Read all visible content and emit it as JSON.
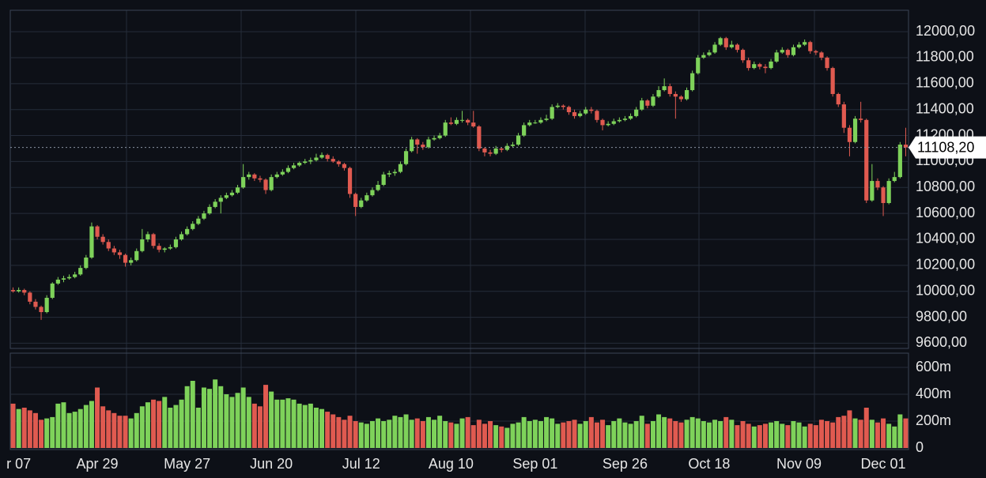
{
  "chart_data": {
    "type": "candlestick",
    "categories": [
      null,
      "r 07",
      null,
      null,
      null,
      null,
      null,
      null,
      null,
      null,
      null,
      null,
      null,
      null,
      null,
      "Apr 29",
      null,
      null,
      null,
      null,
      null,
      null,
      null,
      null,
      null,
      null,
      null,
      null,
      null,
      null,
      null,
      "May 27",
      null,
      null,
      null,
      null,
      null,
      null,
      null,
      null,
      null,
      null,
      null,
      null,
      null,
      null,
      "Jun 20",
      null,
      null,
      null,
      null,
      null,
      null,
      null,
      null,
      null,
      null,
      null,
      null,
      null,
      null,
      null,
      "Jul 12",
      null,
      null,
      null,
      null,
      null,
      null,
      null,
      null,
      null,
      null,
      null,
      null,
      null,
      null,
      null,
      "Aug 10",
      null,
      null,
      null,
      null,
      null,
      null,
      null,
      null,
      null,
      null,
      null,
      null,
      null,
      null,
      "Sep 01",
      null,
      null,
      null,
      null,
      null,
      null,
      null,
      null,
      null,
      null,
      null,
      null,
      null,
      null,
      null,
      "Sep 26",
      null,
      null,
      null,
      null,
      null,
      null,
      null,
      null,
      null,
      null,
      null,
      null,
      null,
      null,
      "Oct 18",
      null,
      null,
      null,
      null,
      null,
      null,
      null,
      null,
      null,
      null,
      null,
      null,
      null,
      null,
      null,
      "Nov 09",
      null,
      null,
      null,
      null,
      null,
      null,
      null,
      null,
      null,
      null,
      null,
      null,
      null,
      null,
      "Dec 01",
      null,
      null,
      null,
      null
    ],
    "ohlc": [
      [
        10010,
        10030,
        9990,
        10000
      ],
      [
        10000,
        10030,
        9990,
        10010
      ],
      [
        10010,
        10020,
        9970,
        9990
      ],
      [
        9990,
        10000,
        9900,
        9920
      ],
      [
        9920,
        9940,
        9860,
        9880
      ],
      [
        9880,
        9890,
        9780,
        9840
      ],
      [
        9840,
        9970,
        9830,
        9950
      ],
      [
        9950,
        10070,
        9940,
        10060
      ],
      [
        10060,
        10110,
        10050,
        10090
      ],
      [
        10090,
        10120,
        10070,
        10100
      ],
      [
        10100,
        10130,
        10090,
        10110
      ],
      [
        10110,
        10150,
        10100,
        10130
      ],
      [
        10130,
        10200,
        10120,
        10180
      ],
      [
        10180,
        10280,
        10170,
        10260
      ],
      [
        10260,
        10530,
        10250,
        10500
      ],
      [
        10500,
        10510,
        10400,
        10420
      ],
      [
        10420,
        10440,
        10360,
        10380
      ],
      [
        10380,
        10400,
        10310,
        10330
      ],
      [
        10330,
        10350,
        10280,
        10300
      ],
      [
        10300,
        10320,
        10250,
        10280
      ],
      [
        10280,
        10290,
        10190,
        10220
      ],
      [
        10220,
        10260,
        10200,
        10240
      ],
      [
        10240,
        10330,
        10230,
        10310
      ],
      [
        10310,
        10480,
        10300,
        10400
      ],
      [
        10400,
        10460,
        10380,
        10440
      ],
      [
        10440,
        10450,
        10330,
        10350
      ],
      [
        10350,
        10370,
        10300,
        10320
      ],
      [
        10320,
        10340,
        10300,
        10330
      ],
      [
        10330,
        10360,
        10320,
        10340
      ],
      [
        10340,
        10420,
        10330,
        10400
      ],
      [
        10400,
        10460,
        10390,
        10440
      ],
      [
        10440,
        10500,
        10430,
        10480
      ],
      [
        10480,
        10540,
        10470,
        10520
      ],
      [
        10520,
        10580,
        10510,
        10560
      ],
      [
        10560,
        10620,
        10550,
        10600
      ],
      [
        10600,
        10670,
        10590,
        10650
      ],
      [
        10650,
        10710,
        10640,
        10690
      ],
      [
        10690,
        10740,
        10600,
        10720
      ],
      [
        10720,
        10760,
        10710,
        10740
      ],
      [
        10740,
        10780,
        10730,
        10760
      ],
      [
        10760,
        10820,
        10750,
        10800
      ],
      [
        10800,
        10980,
        10790,
        10880
      ],
      [
        10880,
        10920,
        10860,
        10900
      ],
      [
        10900,
        10910,
        10850,
        10870
      ],
      [
        10870,
        10890,
        10840,
        10860
      ],
      [
        10860,
        10870,
        10750,
        10780
      ],
      [
        10780,
        10900,
        10770,
        10880
      ],
      [
        10880,
        10920,
        10870,
        10900
      ],
      [
        10900,
        10940,
        10890,
        10920
      ],
      [
        10920,
        10970,
        10910,
        10950
      ],
      [
        10950,
        10990,
        10940,
        10970
      ],
      [
        10970,
        11000,
        10960,
        10990
      ],
      [
        10990,
        11020,
        10980,
        11000
      ],
      [
        11000,
        11030,
        10980,
        11010
      ],
      [
        11010,
        11060,
        11000,
        11030
      ],
      [
        11030,
        11070,
        11020,
        11050
      ],
      [
        11050,
        11060,
        11000,
        11020
      ],
      [
        11020,
        11040,
        10990,
        11000
      ],
      [
        11000,
        11010,
        10960,
        10980
      ],
      [
        10980,
        10990,
        10930,
        10950
      ],
      [
        10950,
        10960,
        10720,
        10750
      ],
      [
        10750,
        10760,
        10580,
        10650
      ],
      [
        10650,
        10720,
        10640,
        10700
      ],
      [
        10700,
        10760,
        10690,
        10740
      ],
      [
        10740,
        10800,
        10730,
        10780
      ],
      [
        10780,
        10850,
        10770,
        10820
      ],
      [
        10820,
        10920,
        10810,
        10900
      ],
      [
        10900,
        10930,
        10880,
        10910
      ],
      [
        10910,
        10940,
        10890,
        10920
      ],
      [
        10920,
        11000,
        10910,
        10980
      ],
      [
        10980,
        11100,
        10970,
        11080
      ],
      [
        11080,
        11190,
        11070,
        11170
      ],
      [
        11170,
        11180,
        11060,
        11130
      ],
      [
        11130,
        11150,
        11090,
        11110
      ],
      [
        11110,
        11190,
        11100,
        11170
      ],
      [
        11170,
        11200,
        11160,
        11180
      ],
      [
        11180,
        11220,
        11170,
        11200
      ],
      [
        11200,
        11320,
        11190,
        11300
      ],
      [
        11300,
        11340,
        11280,
        11290
      ],
      [
        11290,
        11340,
        11280,
        11320
      ],
      [
        11320,
        11390,
        11300,
        11320
      ],
      [
        11320,
        11330,
        11280,
        11300
      ],
      [
        11300,
        11390,
        11260,
        11270
      ],
      [
        11270,
        11280,
        11080,
        11100
      ],
      [
        11100,
        11110,
        11040,
        11070
      ],
      [
        11070,
        11090,
        11040,
        11060
      ],
      [
        11060,
        11120,
        11050,
        11100
      ],
      [
        11100,
        11110,
        11070,
        11090
      ],
      [
        11090,
        11140,
        11080,
        11120
      ],
      [
        11120,
        11150,
        11110,
        11130
      ],
      [
        11130,
        11220,
        11120,
        11200
      ],
      [
        11200,
        11300,
        11190,
        11280
      ],
      [
        11280,
        11320,
        11270,
        11300
      ],
      [
        11300,
        11320,
        11290,
        11300
      ],
      [
        11300,
        11340,
        11290,
        11320
      ],
      [
        11320,
        11360,
        11310,
        11330
      ],
      [
        11330,
        11440,
        11320,
        11420
      ],
      [
        11420,
        11450,
        11410,
        11430
      ],
      [
        11430,
        11440,
        11400,
        11420
      ],
      [
        11420,
        11430,
        11360,
        11380
      ],
      [
        11380,
        11400,
        11330,
        11350
      ],
      [
        11350,
        11390,
        11340,
        11370
      ],
      [
        11370,
        11420,
        11360,
        11400
      ],
      [
        11400,
        11420,
        11370,
        11390
      ],
      [
        11390,
        11400,
        11300,
        11320
      ],
      [
        11320,
        11330,
        11240,
        11280
      ],
      [
        11280,
        11310,
        11270,
        11290
      ],
      [
        11290,
        11330,
        11280,
        11310
      ],
      [
        11310,
        11340,
        11300,
        11320
      ],
      [
        11320,
        11350,
        11310,
        11330
      ],
      [
        11330,
        11370,
        11320,
        11350
      ],
      [
        11350,
        11420,
        11340,
        11400
      ],
      [
        11400,
        11490,
        11390,
        11470
      ],
      [
        11470,
        11480,
        11410,
        11430
      ],
      [
        11430,
        11520,
        11420,
        11500
      ],
      [
        11500,
        11580,
        11490,
        11550
      ],
      [
        11550,
        11640,
        11540,
        11580
      ],
      [
        11580,
        11600,
        11500,
        11520
      ],
      [
        11520,
        11540,
        11330,
        11500
      ],
      [
        11500,
        11510,
        11460,
        11480
      ],
      [
        11480,
        11570,
        11470,
        11550
      ],
      [
        11550,
        11700,
        11540,
        11680
      ],
      [
        11680,
        11820,
        11670,
        11800
      ],
      [
        11800,
        11840,
        11790,
        11820
      ],
      [
        11820,
        11860,
        11810,
        11840
      ],
      [
        11840,
        11920,
        11830,
        11900
      ],
      [
        11900,
        11960,
        11890,
        11950
      ],
      [
        11950,
        11960,
        11860,
        11880
      ],
      [
        11880,
        11930,
        11870,
        11900
      ],
      [
        11900,
        11910,
        11840,
        11860
      ],
      [
        11860,
        11870,
        11760,
        11780
      ],
      [
        11780,
        11800,
        11700,
        11720
      ],
      [
        11720,
        11770,
        11710,
        11750
      ],
      [
        11750,
        11760,
        11710,
        11730
      ],
      [
        11730,
        11750,
        11680,
        11720
      ],
      [
        11720,
        11790,
        11710,
        11770
      ],
      [
        11770,
        11860,
        11760,
        11840
      ],
      [
        11840,
        11880,
        11830,
        11860
      ],
      [
        11860,
        11870,
        11800,
        11820
      ],
      [
        11820,
        11900,
        11810,
        11880
      ],
      [
        11880,
        11920,
        11870,
        11900
      ],
      [
        11900,
        11940,
        11890,
        11920
      ],
      [
        11920,
        11930,
        11830,
        11850
      ],
      [
        11850,
        11860,
        11820,
        11840
      ],
      [
        11840,
        11850,
        11780,
        11800
      ],
      [
        11800,
        11810,
        11700,
        11720
      ],
      [
        11720,
        11730,
        11500,
        11520
      ],
      [
        11520,
        11530,
        11420,
        11440
      ],
      [
        11440,
        11460,
        11220,
        11260
      ],
      [
        11260,
        11280,
        11040,
        11150
      ],
      [
        11150,
        11350,
        11140,
        11330
      ],
      [
        11330,
        11460,
        11300,
        11320
      ],
      [
        11320,
        11330,
        10680,
        10700
      ],
      [
        10700,
        10980,
        10690,
        10850
      ],
      [
        10850,
        10870,
        10780,
        10800
      ],
      [
        10800,
        10810,
        10580,
        10680
      ],
      [
        10680,
        10870,
        10670,
        10850
      ],
      [
        10850,
        10920,
        10840,
        10880
      ],
      [
        10880,
        11150,
        10870,
        11130
      ],
      [
        11130,
        11260,
        11040,
        11108.2
      ]
    ],
    "ylim": [
      9560,
      12165
    ],
    "yticks": [
      {
        "value": 12000,
        "label": "12000,00"
      },
      {
        "value": 11800,
        "label": "11800,00"
      },
      {
        "value": 11600,
        "label": "11600,00"
      },
      {
        "value": 11400,
        "label": "11400,00"
      },
      {
        "value": 11200,
        "label": "11200,00"
      },
      {
        "value": 11000,
        "label": "11000,00"
      },
      {
        "value": 10800,
        "label": "10800,00"
      },
      {
        "value": 10600,
        "label": "10600,00"
      },
      {
        "value": 10400,
        "label": "10400,00"
      },
      {
        "value": 10200,
        "label": "10200,00"
      },
      {
        "value": 10000,
        "label": "10000,00"
      },
      {
        "value": 9800,
        "label": "9800,00"
      },
      {
        "value": 9600,
        "label": "9600,00"
      }
    ],
    "last_price": {
      "value": 11108.2,
      "label": "11108,20"
    },
    "grid": true,
    "colors": {
      "up": "#7ed25a",
      "down": "#e05a50"
    },
    "volume": {
      "values": [
        330,
        290,
        300,
        280,
        260,
        210,
        220,
        230,
        330,
        340,
        260,
        270,
        290,
        320,
        350,
        450,
        310,
        280,
        260,
        240,
        240,
        220,
        260,
        310,
        340,
        360,
        350,
        380,
        300,
        320,
        360,
        460,
        500,
        300,
        450,
        440,
        510,
        460,
        400,
        380,
        410,
        450,
        380,
        330,
        310,
        470,
        420,
        360,
        360,
        370,
        360,
        330,
        320,
        330,
        300,
        290,
        270,
        250,
        230,
        210,
        240,
        200,
        190,
        180,
        200,
        220,
        200,
        210,
        240,
        230,
        250,
        210,
        220,
        200,
        230,
        210,
        240,
        200,
        190,
        180,
        220,
        230,
        170,
        210,
        180,
        200,
        170,
        160,
        150,
        180,
        190,
        230,
        200,
        210,
        200,
        230,
        220,
        180,
        190,
        200,
        210,
        180,
        200,
        230,
        190,
        210,
        170,
        200,
        220,
        190,
        180,
        200,
        240,
        180,
        200,
        250,
        230,
        220,
        200,
        190,
        210,
        230,
        220,
        200,
        190,
        210,
        200,
        230,
        210,
        170,
        200,
        180,
        160,
        170,
        180,
        190,
        200,
        180,
        170,
        200,
        190,
        160,
        180,
        170,
        210,
        200,
        190,
        230,
        240,
        280,
        220,
        210,
        300,
        210,
        190,
        220,
        180,
        160,
        250,
        220
      ],
      "ylim": [
        0,
        700
      ],
      "yticks": [
        0,
        {
          "value": 200,
          "label": "200m"
        },
        {
          "value": 400,
          "label": "400m"
        },
        {
          "value": 600,
          "label": "600m"
        }
      ]
    }
  }
}
